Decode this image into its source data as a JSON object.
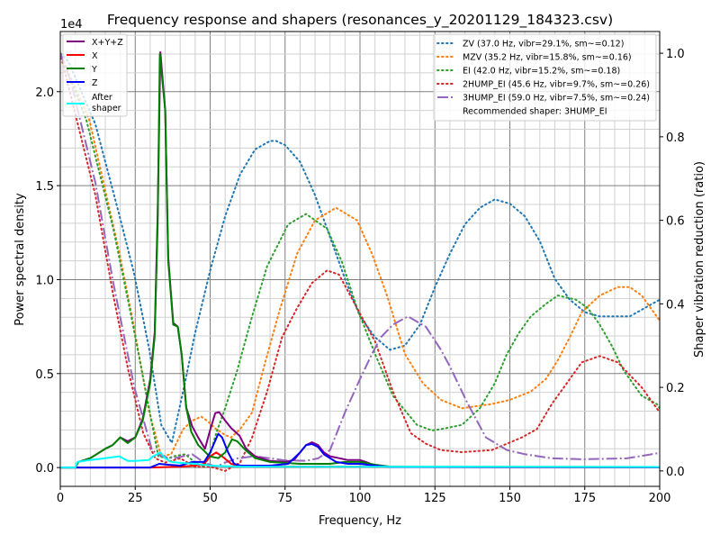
{
  "chart_data": {
    "type": "line",
    "title": "Frequency response and shapers (resonances_y_20201129_184323.csv)",
    "xlabel": "Frequency, Hz",
    "ylabel": "Power spectral density",
    "ylabel_right": "Shaper vibration reduction (ratio)",
    "y_multiplier_label": "1e4",
    "xlim": [
      0,
      200
    ],
    "ylim": [
      -0.1,
      2.32
    ],
    "ylim_right": [
      -0.037,
      1.052
    ],
    "xticks": [
      "0",
      "25",
      "50",
      "75",
      "100",
      "125",
      "150",
      "175",
      "200"
    ],
    "yticks": [
      "0.0",
      "0.5",
      "1.0",
      "1.5",
      "2.0"
    ],
    "yticks_right": [
      "0.0",
      "0.2",
      "0.4",
      "0.6",
      "0.8",
      "1.0"
    ],
    "grid": true,
    "psd_legend_placement": "top-left",
    "shaper_legend_placement": "top-right",
    "psd_series": [
      {
        "name": "X+Y+Z",
        "color": "#800080",
        "x": [
          0,
          5,
          6,
          10,
          15,
          17.5,
          20,
          22.5,
          25,
          27.5,
          30,
          31.5,
          32.5,
          33.4,
          35,
          36,
          37.7,
          39.2,
          40.5,
          42,
          44,
          46,
          48.3,
          50,
          51.7,
          53,
          55,
          57,
          59.8,
          62,
          65,
          70,
          75,
          78,
          80,
          82,
          84,
          86,
          88,
          90,
          93,
          96,
          100,
          102,
          105,
          110,
          120,
          150,
          200
        ],
        "y": [
          0,
          0,
          0.03,
          0.05,
          0.1,
          0.12,
          0.16,
          0.14,
          0.16,
          0.26,
          0.47,
          0.72,
          1.35,
          2.21,
          1.9,
          1.12,
          0.77,
          0.75,
          0.6,
          0.32,
          0.22,
          0.16,
          0.1,
          0.2,
          0.29,
          0.295,
          0.25,
          0.21,
          0.17,
          0.1,
          0.06,
          0.035,
          0.03,
          0.04,
          0.08,
          0.12,
          0.135,
          0.12,
          0.08,
          0.06,
          0.05,
          0.04,
          0.04,
          0.03,
          0.01,
          0.005,
          0.003,
          0.002,
          0.002
        ]
      },
      {
        "name": "X",
        "color": "#ff0000",
        "x": [
          0,
          30,
          40,
          45,
          48,
          50,
          52,
          54,
          57,
          60,
          65,
          80,
          100,
          110,
          200
        ],
        "y": [
          0,
          0,
          0.005,
          0.01,
          0.02,
          0.06,
          0.08,
          0.06,
          0.02,
          0.01,
          0.005,
          0.005,
          0.005,
          0.003,
          0.002
        ]
      },
      {
        "name": "Y",
        "color": "#008000",
        "x": [
          0,
          5,
          6,
          10,
          15,
          17.5,
          20,
          22.5,
          25,
          27.5,
          30,
          31.5,
          32.5,
          33.2,
          35,
          36,
          37.7,
          39.2,
          40.5,
          42,
          43.7,
          46,
          49.8,
          52.7,
          55,
          57.3,
          59,
          62,
          65,
          70,
          80,
          90,
          95,
          100,
          105,
          110,
          200
        ],
        "y": [
          0,
          0,
          0.03,
          0.05,
          0.1,
          0.12,
          0.16,
          0.13,
          0.16,
          0.25,
          0.45,
          0.7,
          1.3,
          2.2,
          1.9,
          1.1,
          0.76,
          0.75,
          0.6,
          0.32,
          0.19,
          0.12,
          0.06,
          0.05,
          0.08,
          0.15,
          0.14,
          0.09,
          0.05,
          0.03,
          0.02,
          0.02,
          0.03,
          0.03,
          0.015,
          0.005,
          0.003
        ]
      },
      {
        "name": "Z",
        "color": "#0000ff",
        "x": [
          0,
          30,
          33,
          36,
          40,
          44,
          48,
          50,
          52.7,
          54,
          56,
          58,
          60,
          70,
          76,
          80,
          82,
          84,
          86,
          88,
          92,
          96,
          100,
          105,
          110,
          200
        ],
        "y": [
          0,
          0,
          0.02,
          0.015,
          0.01,
          0.03,
          0.03,
          0.08,
          0.18,
          0.16,
          0.08,
          0.02,
          0.01,
          0.01,
          0.02,
          0.08,
          0.12,
          0.125,
          0.11,
          0.07,
          0.03,
          0.02,
          0.02,
          0.01,
          0.003,
          0.002
        ]
      },
      {
        "name": "After\nshaper",
        "color": "#00ffff",
        "x": [
          0,
          5,
          5.7,
          10,
          15,
          19.7,
          22.5,
          25,
          29.5,
          31,
          33.4,
          35,
          37,
          40,
          45,
          50,
          60,
          200
        ],
        "y": [
          0,
          0,
          0.03,
          0.04,
          0.05,
          0.06,
          0.035,
          0.035,
          0.04,
          0.06,
          0.08,
          0.05,
          0.03,
          0.025,
          0.02,
          0.01,
          0.005,
          0.003
        ]
      }
    ],
    "shaper_series": [
      {
        "name": "ZV (37.0 Hz, vibr=29.1%, sm~=0.12)",
        "color": "#1f77b4",
        "dash": "dotted",
        "x": [
          0,
          2.7,
          11.7,
          19.8,
          24.7,
          29.7,
          33.7,
          37.2,
          41.7,
          45,
          50,
          55,
          60,
          65,
          70,
          72,
          75,
          80,
          85,
          90,
          95,
          100,
          105,
          110,
          115,
          120,
          125,
          130,
          135,
          140,
          145,
          150,
          155,
          160,
          165,
          170,
          175,
          180,
          185,
          190,
          195,
          200
        ],
        "y": [
          1.0,
          0.98,
          0.83,
          0.61,
          0.47,
          0.29,
          0.11,
          0.067,
          0.215,
          0.33,
          0.48,
          0.61,
          0.71,
          0.77,
          0.79,
          0.79,
          0.78,
          0.74,
          0.66,
          0.56,
          0.46,
          0.37,
          0.32,
          0.29,
          0.3,
          0.35,
          0.44,
          0.52,
          0.59,
          0.63,
          0.65,
          0.64,
          0.61,
          0.55,
          0.46,
          0.41,
          0.38,
          0.37,
          0.37,
          0.37,
          0.39,
          0.41
        ]
      },
      {
        "name": "MZV (35.2 Hz, vibr=15.8%, sm~=0.16)",
        "color": "#ff7f0e",
        "dash": "dotted",
        "x": [
          0,
          9.7,
          19.8,
          24.7,
          29.7,
          33.7,
          37,
          41,
          44,
          47,
          49,
          52,
          55,
          57,
          60,
          64,
          68,
          73,
          79,
          85,
          92,
          99,
          104,
          109,
          115,
          121,
          127,
          134,
          144,
          150,
          157,
          162,
          166,
          170,
          174,
          180,
          186,
          190,
          194,
          200
        ],
        "y": [
          1.0,
          0.84,
          0.52,
          0.34,
          0.14,
          0.035,
          0.04,
          0.1,
          0.12,
          0.13,
          0.12,
          0.1,
          0.086,
          0.08,
          0.1,
          0.14,
          0.25,
          0.38,
          0.52,
          0.6,
          0.63,
          0.6,
          0.52,
          0.42,
          0.28,
          0.21,
          0.17,
          0.15,
          0.16,
          0.17,
          0.19,
          0.22,
          0.265,
          0.32,
          0.38,
          0.42,
          0.44,
          0.44,
          0.42,
          0.36
        ]
      },
      {
        "name": "EI (42.0 Hz, vibr=15.2%, sm~=0.18)",
        "color": "#2ca02c",
        "dash": "dotted",
        "x": [
          0,
          8.7,
          17.7,
          23.7,
          28.8,
          32.7,
          36,
          38,
          41.7,
          45,
          48,
          50,
          52,
          55,
          59,
          64,
          69,
          76,
          82,
          89,
          94,
          99,
          105,
          111,
          119,
          124,
          127,
          134,
          140,
          145,
          149,
          153,
          157,
          162,
          166,
          172,
          176,
          180,
          184,
          188,
          194,
          199,
          200
        ],
        "y": [
          1.0,
          0.84,
          0.58,
          0.37,
          0.18,
          0.035,
          0.03,
          0.035,
          0.04,
          0.02,
          0.01,
          0.04,
          0.09,
          0.15,
          0.24,
          0.37,
          0.49,
          0.59,
          0.615,
          0.58,
          0.5,
          0.39,
          0.28,
          0.18,
          0.11,
          0.097,
          0.1,
          0.11,
          0.15,
          0.21,
          0.28,
          0.33,
          0.37,
          0.4,
          0.42,
          0.41,
          0.39,
          0.35,
          0.3,
          0.24,
          0.18,
          0.16,
          0.15
        ]
      },
      {
        "name": "2HUMP_EI (45.6 Hz, vibr=9.7%, sm~=0.26)",
        "color": "#d62728",
        "dash": "dotted",
        "x": [
          0,
          11.7,
          17.7,
          22.7,
          27.7,
          31.7,
          35,
          40,
          45,
          50,
          55,
          60,
          64,
          69,
          74,
          79,
          84,
          89,
          93,
          99,
          105,
          111,
          117,
          122,
          127,
          134,
          144,
          154,
          159,
          164,
          169,
          174,
          180,
          186,
          194,
          200
        ],
        "y": [
          1.0,
          0.66,
          0.42,
          0.24,
          0.09,
          0.03,
          0.02,
          0.03,
          0.01,
          0.01,
          0.0,
          0.02,
          0.08,
          0.19,
          0.32,
          0.39,
          0.45,
          0.48,
          0.47,
          0.39,
          0.31,
          0.19,
          0.09,
          0.065,
          0.05,
          0.045,
          0.05,
          0.08,
          0.1,
          0.16,
          0.21,
          0.26,
          0.275,
          0.26,
          0.2,
          0.14
        ]
      },
      {
        "name": "3HUMP_EI (59.0 Hz, vibr=7.5%, sm~=0.24)",
        "color": "#9467bd",
        "dash": "dashdot",
        "x": [
          0,
          3.6,
          11.7,
          17.7,
          24.7,
          30.6,
          33.7,
          38,
          44,
          48,
          52,
          55,
          59,
          65,
          70,
          75,
          82,
          86,
          90,
          95,
          100,
          104,
          107,
          111,
          116,
          122,
          127,
          130,
          136,
          142,
          149,
          155,
          164,
          174,
          189,
          200
        ],
        "y": [
          1.0,
          0.93,
          0.69,
          0.45,
          0.2,
          0.05,
          0.035,
          0.03,
          0.04,
          0.02,
          0.01,
          0.02,
          0.03,
          0.035,
          0.03,
          0.025,
          0.024,
          0.03,
          0.05,
          0.14,
          0.22,
          0.28,
          0.32,
          0.35,
          0.37,
          0.345,
          0.29,
          0.25,
          0.16,
          0.08,
          0.05,
          0.04,
          0.03,
          0.028,
          0.03,
          0.043
        ]
      }
    ],
    "recommendation": "Recommended shaper: 3HUMP_EI"
  }
}
